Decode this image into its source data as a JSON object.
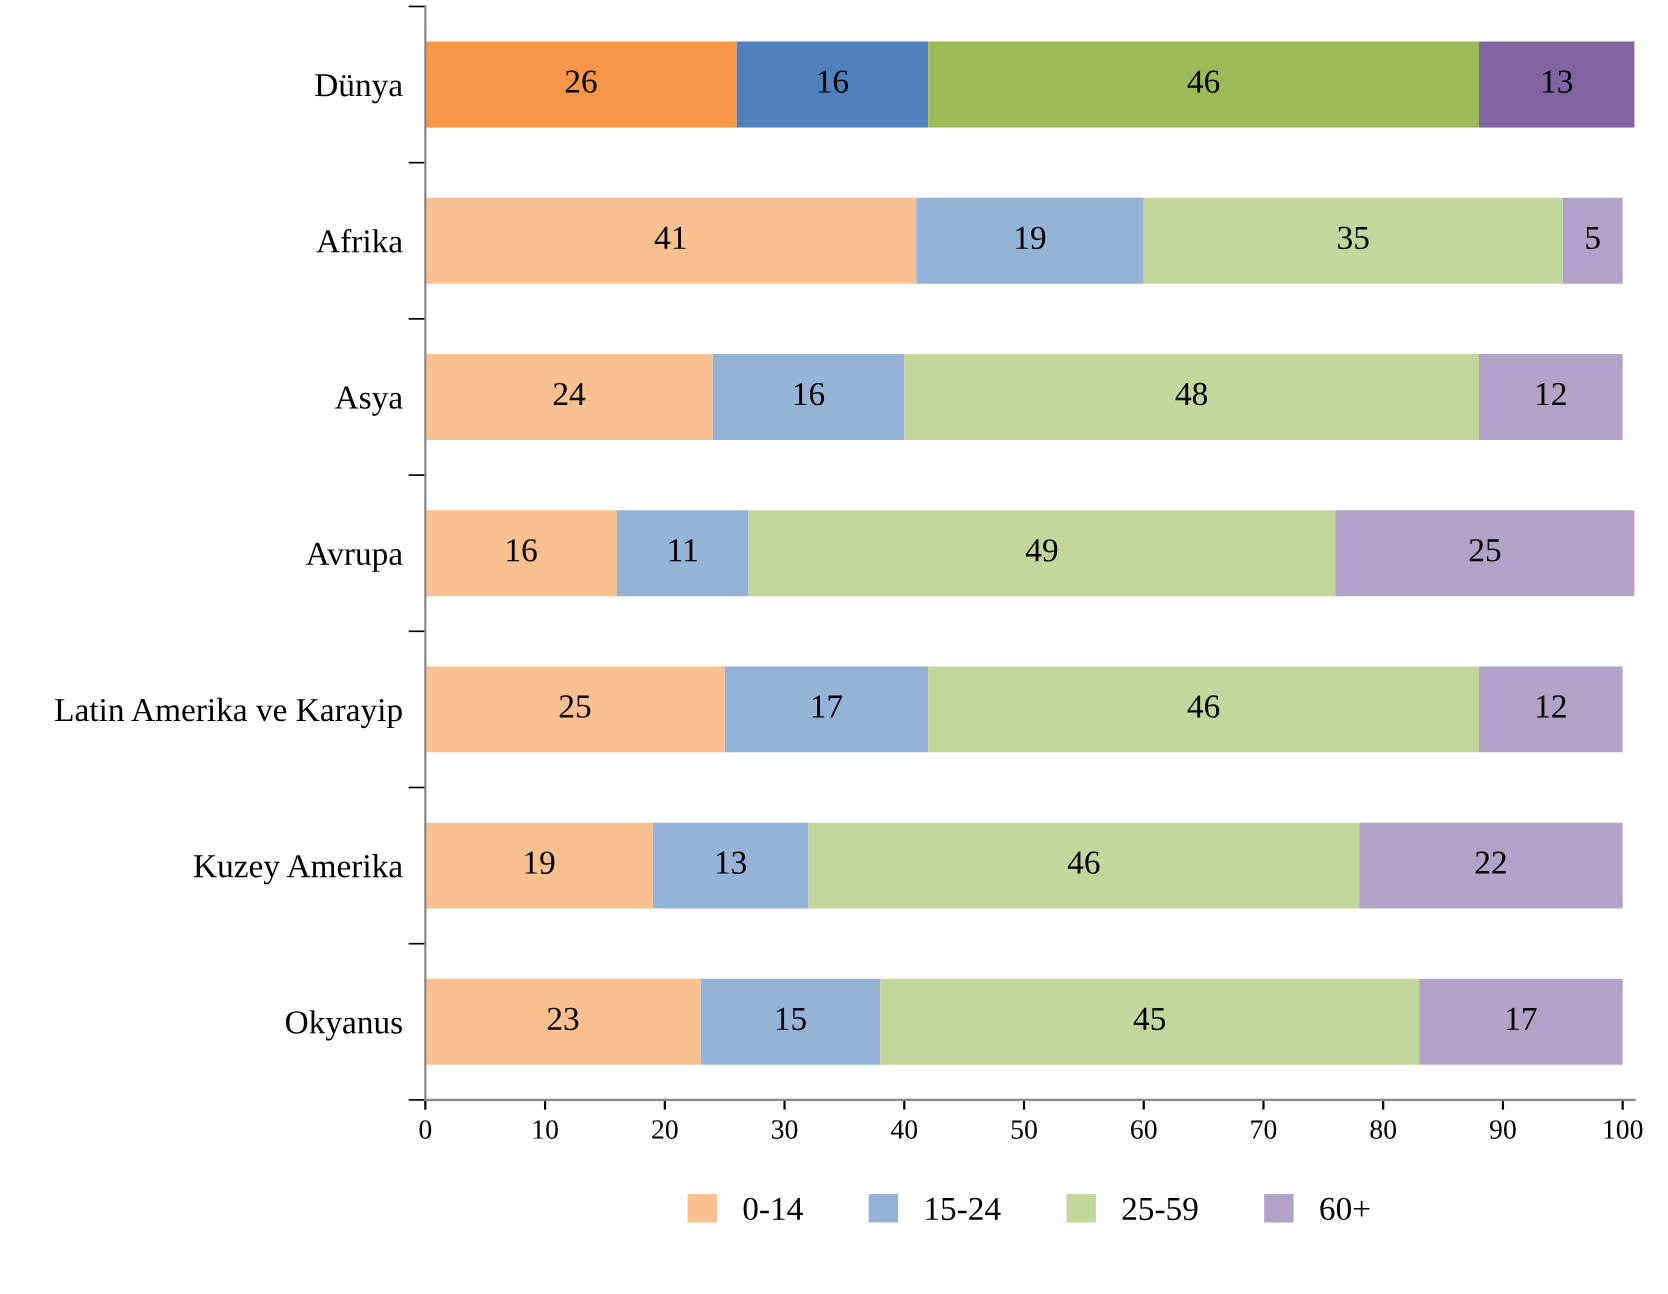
{
  "chart_data": {
    "type": "bar",
    "orientation": "horizontal",
    "stacked": true,
    "data_labels": true,
    "legend": "bottom",
    "grid": false,
    "categories": [
      "Dünya",
      "Afrika",
      "Asya",
      "Avrupa",
      "Latin Amerika ve Karayip",
      "Kuzey Amerika",
      "Okyanus"
    ],
    "xlim": [
      0,
      101
    ],
    "xticks": [
      0,
      10,
      20,
      30,
      40,
      50,
      60,
      70,
      80,
      90,
      100
    ],
    "series": [
      {
        "name": "0-14",
        "color": "#fac090",
        "colors": [
          "#f79646",
          "#fac090",
          "#fac090",
          "#fac090",
          "#fac090",
          "#fac090",
          "#fac090"
        ],
        "values": [
          26,
          41,
          24,
          16,
          25,
          19,
          23
        ]
      },
      {
        "name": "15-24",
        "color": "#95b3d7",
        "colors": [
          "#4f81bd",
          "#95b3d7",
          "#95b3d7",
          "#95b3d7",
          "#95b3d7",
          "#95b3d7",
          "#95b3d7"
        ],
        "values": [
          16,
          19,
          16,
          11,
          17,
          13,
          15
        ]
      },
      {
        "name": "25-59",
        "color": "#c3d69b",
        "colors": [
          "#9bbb59",
          "#c3d69b",
          "#c3d69b",
          "#c3d69b",
          "#c3d69b",
          "#c3d69b",
          "#c3d69b"
        ],
        "values": [
          46,
          35,
          48,
          49,
          46,
          46,
          45
        ]
      },
      {
        "name": "60+",
        "color": "#b3a2c7",
        "colors": [
          "#8064a2",
          "#b3a2c7",
          "#b3a2c7",
          "#b3a2c7",
          "#b3a2c7",
          "#b3a2c7",
          "#b3a2c7"
        ],
        "values": [
          13,
          5,
          12,
          25,
          12,
          22,
          17
        ]
      }
    ]
  }
}
